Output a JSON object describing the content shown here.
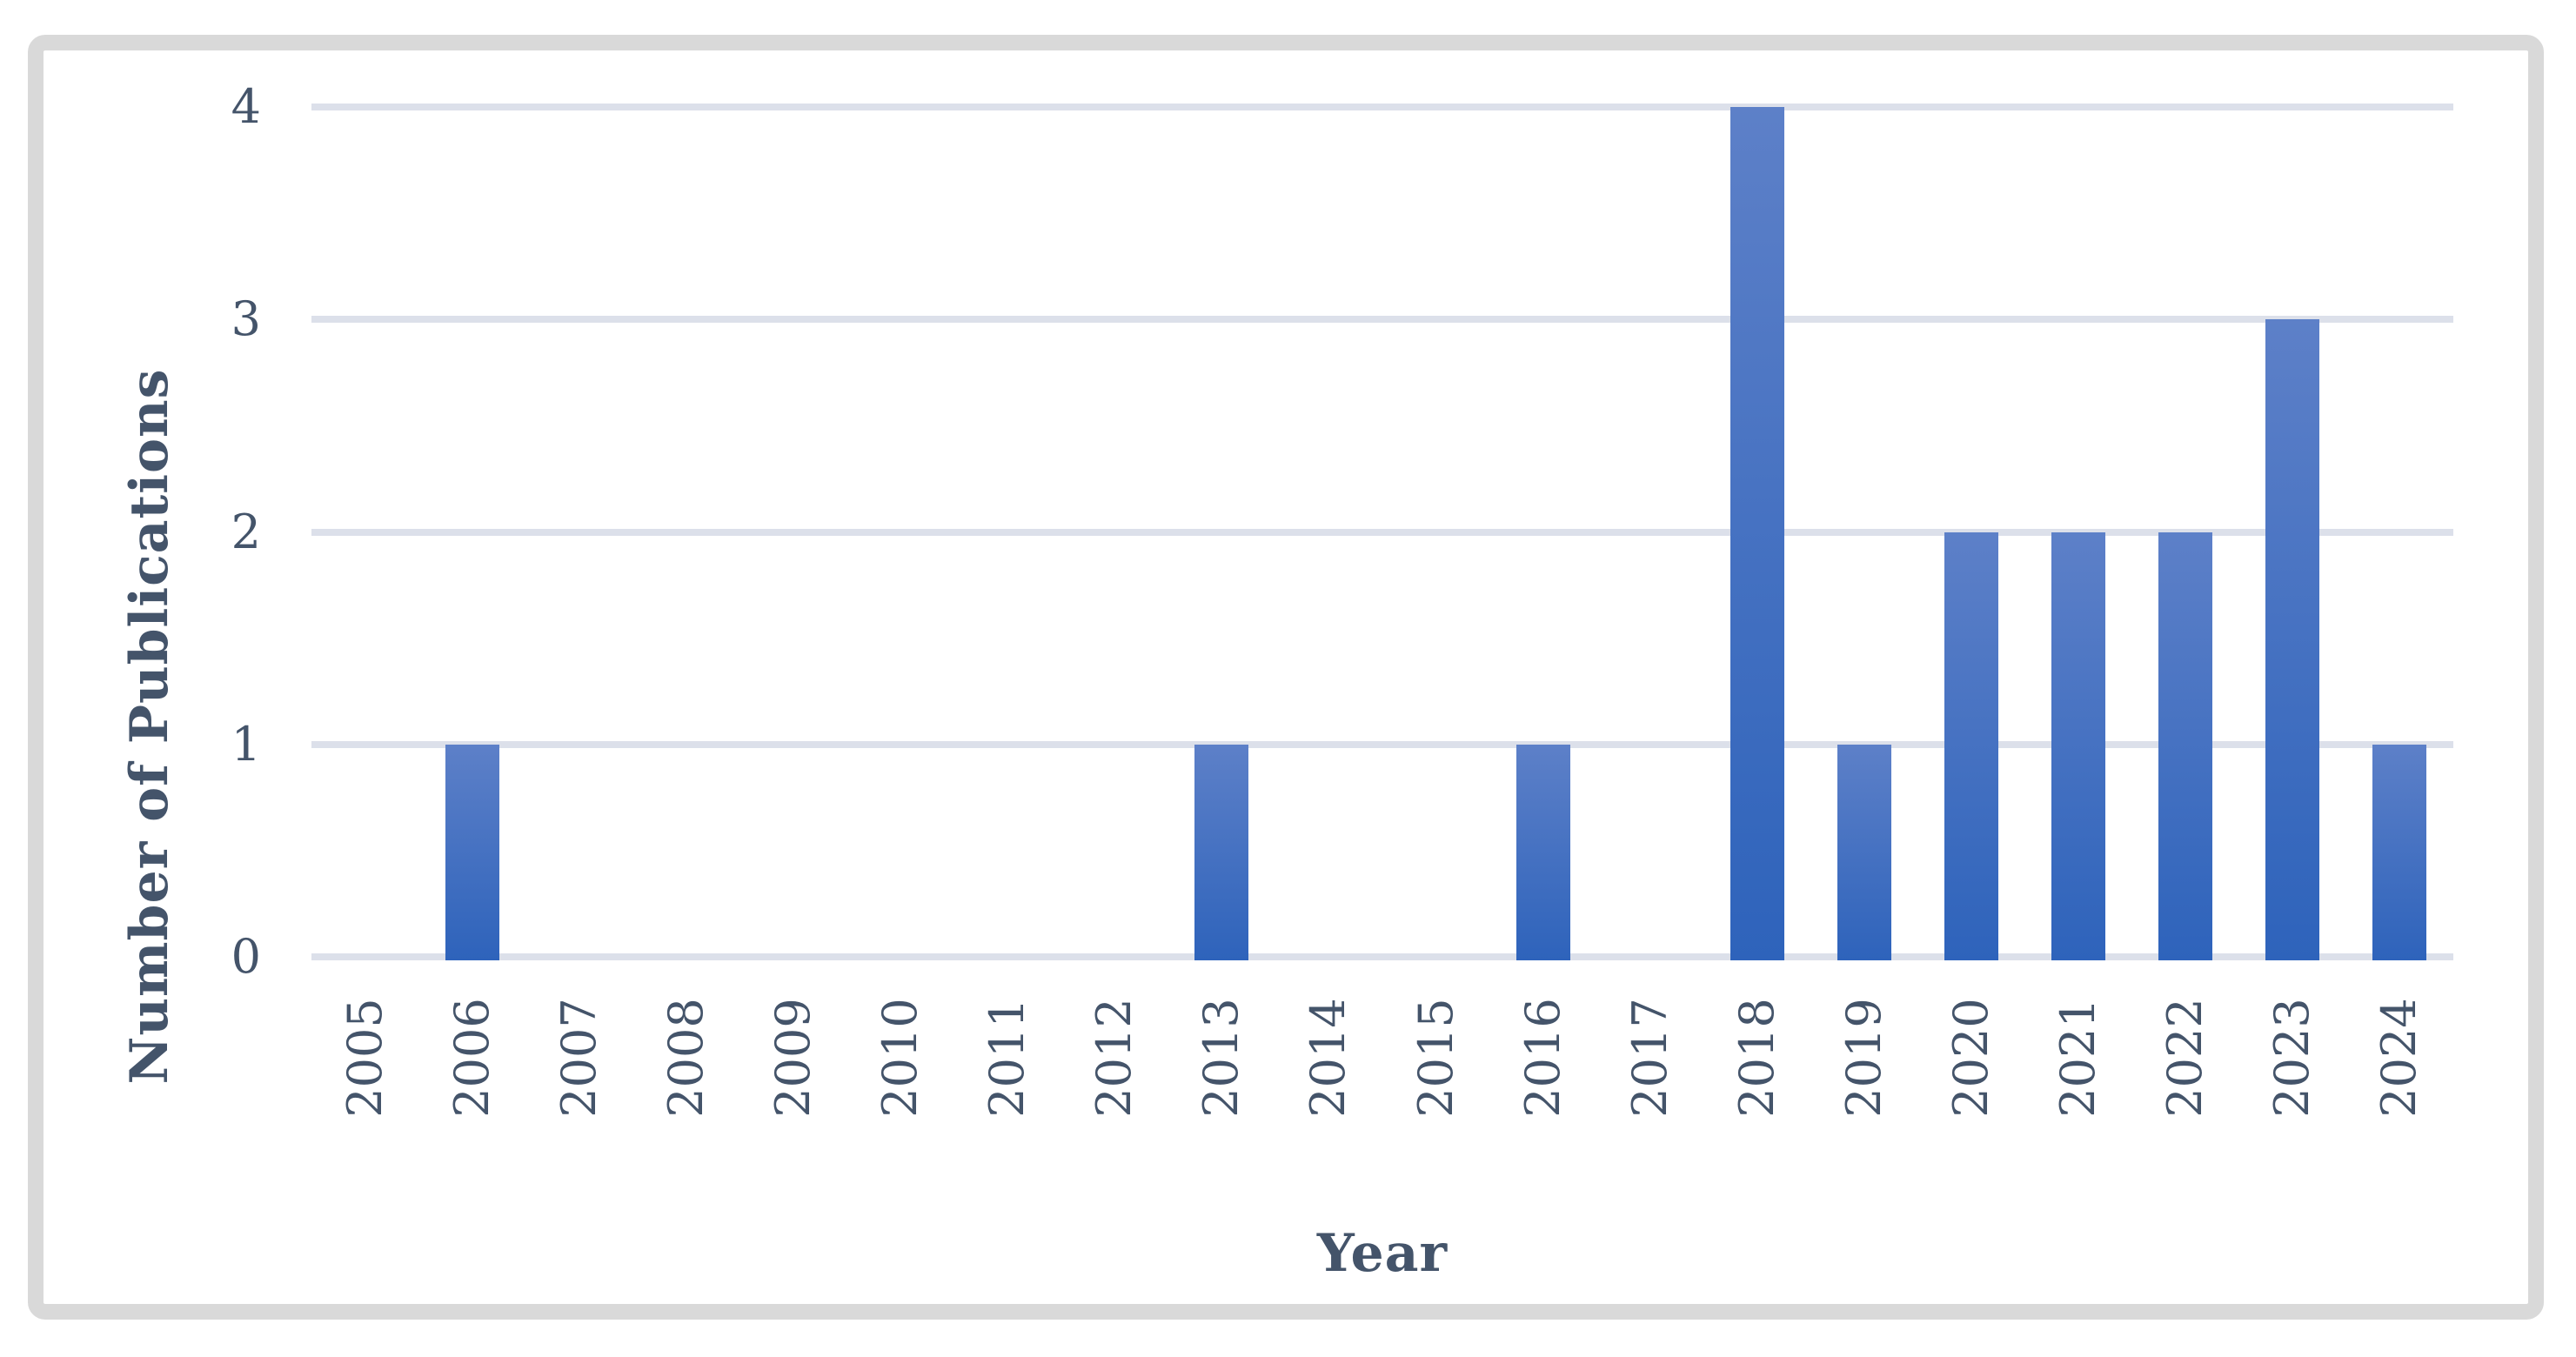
{
  "chart_data": {
    "type": "bar",
    "title": "",
    "categories": [
      "2005",
      "2006",
      "2007",
      "2008",
      "2009",
      "2010",
      "2011",
      "2012",
      "2013",
      "2014",
      "2015",
      "2016",
      "2017",
      "2018",
      "2019",
      "2020",
      "2021",
      "2022",
      "2023",
      "2024"
    ],
    "values": [
      0,
      1,
      0,
      0,
      0,
      0,
      0,
      0,
      1,
      0,
      0,
      1,
      0,
      4,
      1,
      2,
      2,
      2,
      3,
      1
    ],
    "xlabel": "Year",
    "ylabel": "Number of Publications",
    "yticks": [
      0,
      1,
      2,
      3,
      4
    ],
    "ylim": [
      0,
      4
    ],
    "grid": true,
    "legend": false,
    "colors": {
      "bar_gradient_top": "#5d80c8",
      "bar_gradient_bottom": "#2e63bb",
      "gridline": "#dce0ea",
      "axis_text": "#44546a",
      "frame_border": "#d9d9d9",
      "background": "#ffffff"
    }
  }
}
